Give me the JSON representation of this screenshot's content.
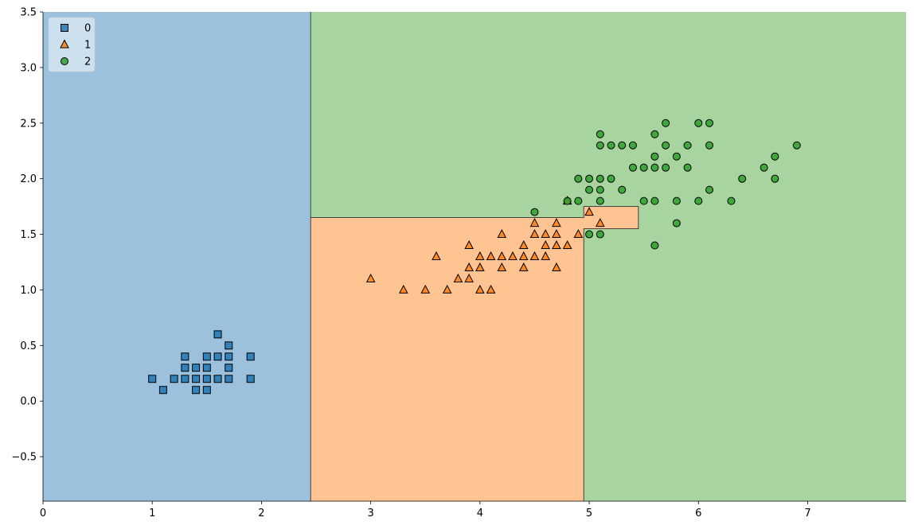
{
  "chart_data": {
    "type": "scatter",
    "subtype": "decision-region-plot",
    "xlim": [
      0,
      7.9
    ],
    "ylim": [
      -0.9,
      3.5
    ],
    "xticks": [
      0,
      1,
      2,
      3,
      4,
      5,
      6,
      7
    ],
    "yticks": [
      -0.5,
      0.0,
      0.5,
      1.0,
      1.5,
      2.0,
      2.5,
      3.0,
      3.5
    ],
    "xtick_labels": [
      "0",
      "1",
      "2",
      "3",
      "4",
      "5",
      "6",
      "7"
    ],
    "ytick_labels": [
      "−0.5",
      "0.0",
      "0.5",
      "1.0",
      "1.5",
      "2.0",
      "2.5",
      "3.0",
      "3.5"
    ],
    "grid": false,
    "legend": {
      "placement": "top-left",
      "entries": [
        {
          "label": "0",
          "marker": "square",
          "color": "#1f77b4"
        },
        {
          "label": "1",
          "marker": "triangle",
          "color": "#ff7f0e"
        },
        {
          "label": "2",
          "marker": "circle",
          "color": "#2ca02c"
        }
      ]
    },
    "region_colors": {
      "0": "#9bc1dc",
      "1": "#ffc491",
      "2": "#a8d4a0"
    },
    "regions": [
      {
        "class": "0",
        "x": [
          0,
          2.45
        ],
        "y": [
          -0.9,
          3.5
        ]
      },
      {
        "class": "2",
        "x": [
          2.45,
          7.9
        ],
        "y": [
          -0.9,
          3.5
        ]
      },
      {
        "class": "1",
        "x": [
          2.45,
          4.95
        ],
        "y": [
          -0.9,
          1.65
        ]
      },
      {
        "class": "1",
        "x": [
          4.95,
          5.45
        ],
        "y": [
          1.55,
          1.75
        ]
      }
    ],
    "series": [
      {
        "name": "0",
        "marker": "square",
        "color": "#1f77b4",
        "points": [
          [
            1.0,
            0.2
          ],
          [
            1.1,
            0.1
          ],
          [
            1.2,
            0.2
          ],
          [
            1.3,
            0.2
          ],
          [
            1.3,
            0.3
          ],
          [
            1.3,
            0.4
          ],
          [
            1.4,
            0.1
          ],
          [
            1.4,
            0.2
          ],
          [
            1.4,
            0.3
          ],
          [
            1.5,
            0.1
          ],
          [
            1.5,
            0.2
          ],
          [
            1.5,
            0.3
          ],
          [
            1.5,
            0.4
          ],
          [
            1.6,
            0.2
          ],
          [
            1.6,
            0.4
          ],
          [
            1.6,
            0.6
          ],
          [
            1.7,
            0.2
          ],
          [
            1.7,
            0.3
          ],
          [
            1.7,
            0.4
          ],
          [
            1.7,
            0.5
          ],
          [
            1.9,
            0.2
          ],
          [
            1.9,
            0.4
          ]
        ]
      },
      {
        "name": "1",
        "marker": "triangle",
        "color": "#ff7f0e",
        "points": [
          [
            3.0,
            1.1
          ],
          [
            3.3,
            1.0
          ],
          [
            3.5,
            1.0
          ],
          [
            3.6,
            1.3
          ],
          [
            3.7,
            1.0
          ],
          [
            3.8,
            1.1
          ],
          [
            3.9,
            1.1
          ],
          [
            3.9,
            1.2
          ],
          [
            3.9,
            1.4
          ],
          [
            4.0,
            1.0
          ],
          [
            4.0,
            1.2
          ],
          [
            4.0,
            1.3
          ],
          [
            4.1,
            1.0
          ],
          [
            4.1,
            1.3
          ],
          [
            4.2,
            1.2
          ],
          [
            4.2,
            1.3
          ],
          [
            4.2,
            1.5
          ],
          [
            4.3,
            1.3
          ],
          [
            4.4,
            1.2
          ],
          [
            4.4,
            1.3
          ],
          [
            4.4,
            1.4
          ],
          [
            4.5,
            1.3
          ],
          [
            4.5,
            1.5
          ],
          [
            4.5,
            1.6
          ],
          [
            4.6,
            1.3
          ],
          [
            4.6,
            1.4
          ],
          [
            4.6,
            1.5
          ],
          [
            4.7,
            1.2
          ],
          [
            4.7,
            1.4
          ],
          [
            4.7,
            1.5
          ],
          [
            4.7,
            1.6
          ],
          [
            4.8,
            1.4
          ],
          [
            4.8,
            1.8
          ],
          [
            4.9,
            1.5
          ],
          [
            5.0,
            1.7
          ],
          [
            5.1,
            1.6
          ]
        ]
      },
      {
        "name": "2",
        "marker": "circle",
        "color": "#2ca02c",
        "points": [
          [
            4.5,
            1.7
          ],
          [
            4.8,
            1.8
          ],
          [
            4.9,
            1.8
          ],
          [
            4.9,
            2.0
          ],
          [
            5.0,
            1.5
          ],
          [
            5.0,
            1.9
          ],
          [
            5.0,
            2.0
          ],
          [
            5.1,
            1.5
          ],
          [
            5.1,
            1.8
          ],
          [
            5.1,
            1.9
          ],
          [
            5.1,
            2.0
          ],
          [
            5.1,
            2.3
          ],
          [
            5.1,
            2.4
          ],
          [
            5.2,
            2.0
          ],
          [
            5.2,
            2.3
          ],
          [
            5.3,
            1.9
          ],
          [
            5.3,
            2.3
          ],
          [
            5.4,
            2.1
          ],
          [
            5.4,
            2.3
          ],
          [
            5.5,
            1.8
          ],
          [
            5.5,
            2.1
          ],
          [
            5.6,
            1.4
          ],
          [
            5.6,
            1.8
          ],
          [
            5.6,
            2.1
          ],
          [
            5.6,
            2.2
          ],
          [
            5.6,
            2.4
          ],
          [
            5.7,
            2.1
          ],
          [
            5.7,
            2.3
          ],
          [
            5.7,
            2.5
          ],
          [
            5.8,
            1.6
          ],
          [
            5.8,
            1.8
          ],
          [
            5.8,
            2.2
          ],
          [
            5.9,
            2.1
          ],
          [
            5.9,
            2.3
          ],
          [
            6.0,
            1.8
          ],
          [
            6.0,
            2.5
          ],
          [
            6.1,
            1.9
          ],
          [
            6.1,
            2.3
          ],
          [
            6.1,
            2.5
          ],
          [
            6.3,
            1.8
          ],
          [
            6.4,
            2.0
          ],
          [
            6.6,
            2.1
          ],
          [
            6.7,
            2.0
          ],
          [
            6.7,
            2.2
          ],
          [
            6.9,
            2.3
          ]
        ]
      }
    ]
  }
}
